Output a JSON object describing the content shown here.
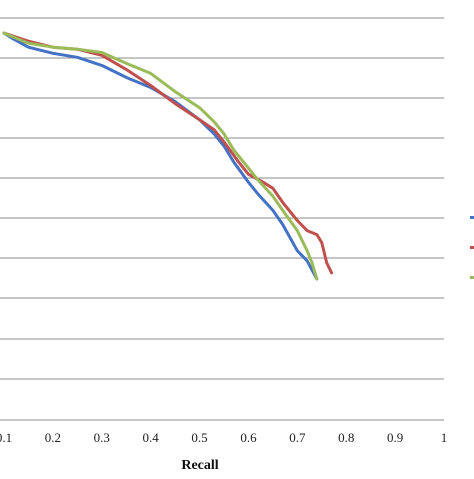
{
  "chart_data": {
    "type": "line",
    "title": "",
    "xlabel": "Recall",
    "ylabel": "",
    "xlim": [
      0.1,
      1.0
    ],
    "x_ticks": [
      "0.1",
      "0.2",
      "0.3",
      "0.4",
      "0.5",
      "0.6",
      "0.7",
      "0.8",
      "0.9",
      "1"
    ],
    "grid": true,
    "legend": "right (cropped)",
    "series": [
      {
        "color": "#4472c4",
        "points": [
          [
            0.1,
            0.96
          ],
          [
            0.12,
            0.945
          ],
          [
            0.15,
            0.925
          ],
          [
            0.2,
            0.91
          ],
          [
            0.25,
            0.9
          ],
          [
            0.3,
            0.88
          ],
          [
            0.35,
            0.85
          ],
          [
            0.4,
            0.825
          ],
          [
            0.45,
            0.79
          ],
          [
            0.5,
            0.745
          ],
          [
            0.53,
            0.71
          ],
          [
            0.55,
            0.68
          ],
          [
            0.57,
            0.64
          ],
          [
            0.6,
            0.59
          ],
          [
            0.62,
            0.56
          ],
          [
            0.65,
            0.52
          ],
          [
            0.67,
            0.485
          ],
          [
            0.7,
            0.42
          ],
          [
            0.72,
            0.395
          ],
          [
            0.74,
            0.35
          ]
        ]
      },
      {
        "color": "#c0504d",
        "points": [
          [
            0.1,
            0.96
          ],
          [
            0.15,
            0.94
          ],
          [
            0.2,
            0.925
          ],
          [
            0.25,
            0.92
          ],
          [
            0.3,
            0.905
          ],
          [
            0.35,
            0.87
          ],
          [
            0.4,
            0.83
          ],
          [
            0.45,
            0.785
          ],
          [
            0.5,
            0.745
          ],
          [
            0.53,
            0.72
          ],
          [
            0.55,
            0.69
          ],
          [
            0.58,
            0.64
          ],
          [
            0.6,
            0.61
          ],
          [
            0.63,
            0.59
          ],
          [
            0.65,
            0.575
          ],
          [
            0.67,
            0.54
          ],
          [
            0.7,
            0.495
          ],
          [
            0.72,
            0.47
          ],
          [
            0.74,
            0.46
          ],
          [
            0.75,
            0.44
          ],
          [
            0.76,
            0.39
          ],
          [
            0.77,
            0.365
          ]
        ]
      },
      {
        "color": "#9bbb59",
        "points": [
          [
            0.1,
            0.96
          ],
          [
            0.15,
            0.935
          ],
          [
            0.2,
            0.925
          ],
          [
            0.25,
            0.92
          ],
          [
            0.3,
            0.912
          ],
          [
            0.35,
            0.885
          ],
          [
            0.4,
            0.86
          ],
          [
            0.45,
            0.815
          ],
          [
            0.5,
            0.775
          ],
          [
            0.53,
            0.74
          ],
          [
            0.55,
            0.71
          ],
          [
            0.57,
            0.67
          ],
          [
            0.6,
            0.625
          ],
          [
            0.62,
            0.595
          ],
          [
            0.65,
            0.555
          ],
          [
            0.67,
            0.52
          ],
          [
            0.7,
            0.47
          ],
          [
            0.72,
            0.42
          ],
          [
            0.73,
            0.39
          ],
          [
            0.74,
            0.35
          ]
        ]
      }
    ]
  }
}
